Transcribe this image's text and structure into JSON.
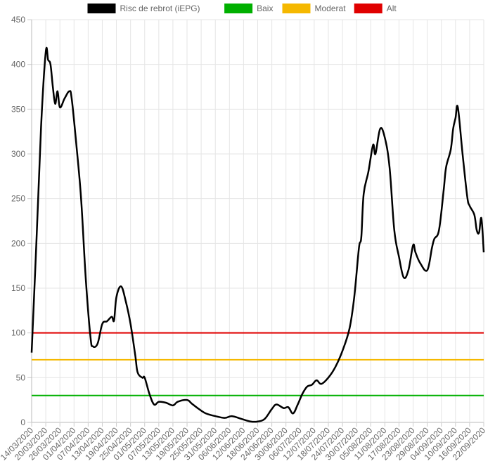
{
  "chart_data": {
    "type": "line",
    "series": [
      {
        "name": "Risc de rebrot (iEPG)",
        "color": "#000000",
        "line_width": 2.5,
        "x": [
          "14/03/2020",
          "16/03/2020",
          "18/03/2020",
          "20/03/2020",
          "21/03/2020",
          "22/03/2020",
          "23/03/2020",
          "24/03/2020",
          "25/03/2020",
          "26/03/2020",
          "28/03/2020",
          "30/03/2020",
          "31/03/2020",
          "02/04/2020",
          "04/04/2020",
          "06/04/2020",
          "08/04/2020",
          "09/04/2020",
          "11/04/2020",
          "13/04/2020",
          "15/04/2020",
          "17/04/2020",
          "18/04/2020",
          "19/04/2020",
          "21/04/2020",
          "23/04/2020",
          "25/04/2020",
          "27/04/2020",
          "28/04/2020",
          "30/04/2020",
          "01/05/2020",
          "03/05/2020",
          "05/05/2020",
          "07/05/2020",
          "10/05/2020",
          "13/05/2020",
          "15/05/2020",
          "19/05/2020",
          "21/05/2020",
          "24/05/2020",
          "27/05/2020",
          "31/05/2020",
          "04/06/2020",
          "07/06/2020",
          "11/06/2020",
          "15/06/2020",
          "18/06/2020",
          "21/06/2020",
          "24/06/2020",
          "26/06/2020",
          "29/06/2020",
          "01/07/2020",
          "03/07/2020",
          "05/07/2020",
          "07/07/2020",
          "09/07/2020",
          "11/07/2020",
          "13/07/2020",
          "15/07/2020",
          "18/07/2020",
          "21/07/2020",
          "24/07/2020",
          "27/07/2020",
          "29/07/2020",
          "31/07/2020",
          "01/08/2020",
          "02/08/2020",
          "04/08/2020",
          "06/08/2020",
          "07/08/2020",
          "09/08/2020",
          "11/08/2020",
          "13/08/2020",
          "15/08/2020",
          "17/08/2020",
          "19/08/2020",
          "21/08/2020",
          "23/08/2020",
          "24/08/2020",
          "26/08/2020",
          "29/08/2020",
          "31/08/2020",
          "01/09/2020",
          "03/09/2020",
          "05/09/2020",
          "06/09/2020",
          "08/09/2020",
          "09/09/2020",
          "10/09/2020",
          "11/09/2020",
          "13/09/2020",
          "15/09/2020",
          "16/09/2020",
          "18/09/2020",
          "19/09/2020",
          "20/09/2020",
          "21/09/2020",
          "22/09/2020"
        ],
        "values": [
          78,
          200,
          330,
          414,
          405,
          400,
          375,
          356,
          370,
          352,
          362,
          370,
          362,
          310,
          250,
          160,
          95,
          85,
          88,
          110,
          113,
          118,
          114,
          140,
          152,
          135,
          110,
          75,
          56,
          50,
          50,
          32,
          20,
          23,
          22,
          19,
          23,
          25,
          21,
          15,
          10,
          7,
          5,
          7,
          4,
          1,
          1,
          4,
          15,
          20,
          16,
          17,
          10,
          20,
          32,
          40,
          42,
          47,
          43,
          50,
          62,
          80,
          105,
          140,
          195,
          207,
          255,
          280,
          310,
          300,
          328,
          318,
          285,
          215,
          185,
          162,
          170,
          198,
          190,
          178,
          170,
          195,
          205,
          215,
          260,
          285,
          305,
          328,
          340,
          352,
          300,
          252,
          242,
          232,
          215,
          212,
          228,
          190
        ]
      },
      {
        "name": "Baix",
        "color": "#00b000",
        "line_width": 2,
        "x": [
          "14/03/2020",
          "22/09/2020"
        ],
        "values": [
          30,
          30
        ]
      },
      {
        "name": "Moderat",
        "color": "#f5b800",
        "line_width": 2,
        "x": [
          "14/03/2020",
          "22/09/2020"
        ],
        "values": [
          70,
          70
        ]
      },
      {
        "name": "Alt",
        "color": "#e00000",
        "line_width": 2,
        "x": [
          "14/03/2020",
          "22/09/2020"
        ],
        "values": [
          100,
          100
        ]
      }
    ],
    "xlim": [
      "14/03/2020",
      "22/09/2020"
    ],
    "xticks": [
      "14/03/2020",
      "20/03/2020",
      "26/03/2020",
      "01/04/2020",
      "07/04/2020",
      "13/04/2020",
      "19/04/2020",
      "25/04/2020",
      "01/05/2020",
      "07/05/2020",
      "13/05/2020",
      "19/05/2020",
      "25/05/2020",
      "31/05/2020",
      "06/06/2020",
      "12/06/2020",
      "18/06/2020",
      "24/06/2020",
      "30/06/2020",
      "06/07/2020",
      "12/07/2020",
      "18/07/2020",
      "24/07/2020",
      "30/07/2020",
      "05/08/2020",
      "11/08/2020",
      "17/08/2020",
      "23/08/2020",
      "29/08/2020",
      "04/09/2020",
      "10/09/2020",
      "16/09/2020",
      "22/09/2020"
    ],
    "ylim": [
      0,
      450
    ],
    "yticks": [
      0,
      50,
      100,
      150,
      200,
      250,
      300,
      350,
      400,
      450
    ],
    "grid": true,
    "legend": "top"
  }
}
